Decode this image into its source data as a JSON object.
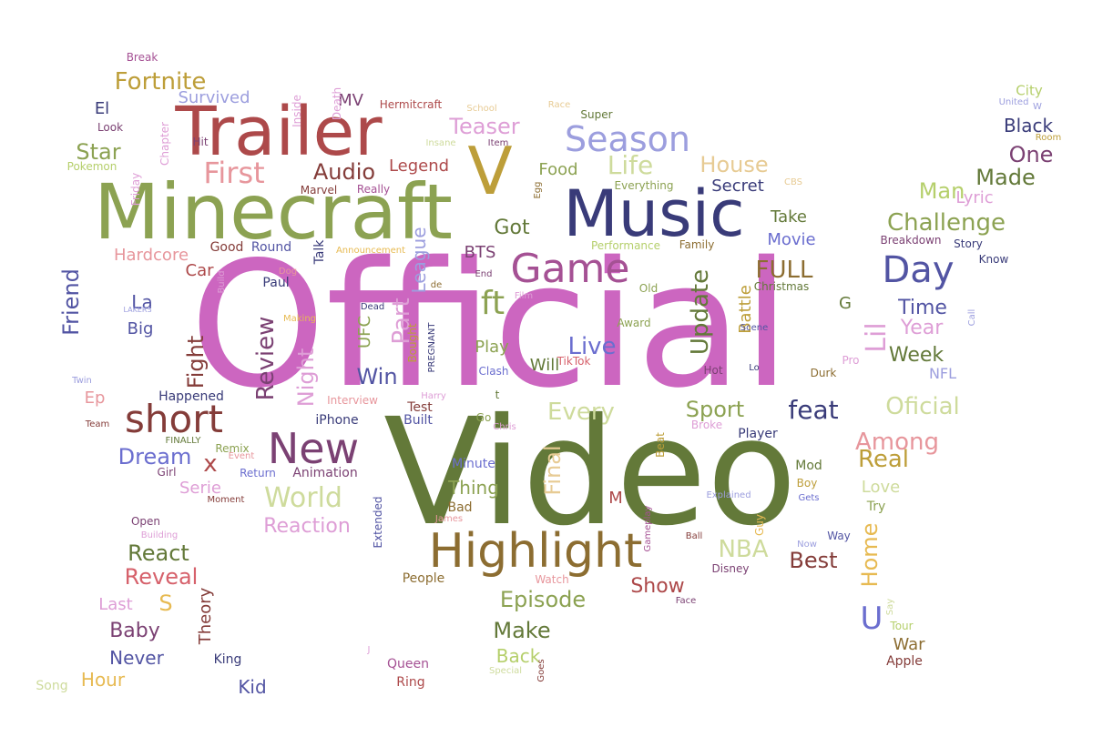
{
  "palette": {
    "pink": "#cc66c0",
    "olive": "#637939",
    "sage": "#8ca252",
    "lime": "#b5cf6b",
    "pale_lime": "#cedb9c",
    "navy": "#393b79",
    "blue": "#5254a3",
    "periwinkle": "#6b6ecf",
    "lavender": "#9c9ede",
    "brown": "#8c6d31",
    "gold": "#bd9e39",
    "yellow": "#e7ba52",
    "tan": "#e7cb94",
    "dark_red": "#843c39",
    "red": "#ad494a",
    "salmon": "#d6616b",
    "light_salmon": "#e7969c",
    "plum": "#7b4173",
    "orchid": "#a55194",
    "light_orchid": "#de9ed6"
  },
  "words": [
    {
      "text": "Official",
      "color": "pink"
    },
    {
      "text": "Video",
      "color": "olive"
    },
    {
      "text": "Minecraft",
      "color": "sage"
    },
    {
      "text": "Music",
      "color": "navy"
    },
    {
      "text": "Trailer",
      "color": "red"
    },
    {
      "text": "V",
      "color": "gold"
    },
    {
      "text": "Highlight",
      "color": "brown"
    },
    {
      "text": "New",
      "color": "plum"
    },
    {
      "text": "short",
      "color": "dark_red"
    },
    {
      "text": "Game",
      "color": "orchid"
    },
    {
      "text": "ft",
      "color": "sage"
    },
    {
      "text": "Season",
      "color": "lavender"
    },
    {
      "text": "Day",
      "color": "blue"
    },
    {
      "text": "First",
      "color": "light_salmon"
    },
    {
      "text": "World",
      "color": "pale_lime"
    },
    {
      "text": "Fortnite",
      "color": "gold"
    },
    {
      "text": "Life",
      "color": "pale_lime"
    },
    {
      "text": "Teaser",
      "color": "light_orchid"
    },
    {
      "text": "Audio",
      "color": "dark_red"
    },
    {
      "text": "House",
      "color": "tan"
    },
    {
      "text": "Challenge",
      "color": "sage"
    },
    {
      "text": "Man",
      "color": "lime"
    },
    {
      "text": "Made",
      "color": "olive"
    },
    {
      "text": "One",
      "color": "plum"
    },
    {
      "text": "Black",
      "color": "navy"
    },
    {
      "text": "City",
      "color": "lime"
    },
    {
      "text": "Lyric",
      "color": "light_orchid"
    },
    {
      "text": "FULL",
      "color": "brown"
    },
    {
      "text": "Time",
      "color": "blue"
    },
    {
      "text": "Year",
      "color": "light_orchid"
    },
    {
      "text": "Week",
      "color": "olive"
    },
    {
      "text": "Lil",
      "color": "light_orchid"
    },
    {
      "text": "NFL",
      "color": "lavender"
    },
    {
      "text": "feat",
      "color": "navy"
    },
    {
      "text": "Oficial",
      "color": "pale_lime"
    },
    {
      "text": "Among",
      "color": "light_salmon"
    },
    {
      "text": "Real",
      "color": "gold"
    },
    {
      "text": "Love",
      "color": "pale_lime"
    },
    {
      "text": "Sport",
      "color": "sage"
    },
    {
      "text": "Every",
      "color": "pale_lime"
    },
    {
      "text": "Live",
      "color": "periwinkle"
    },
    {
      "text": "Update",
      "color": "olive"
    },
    {
      "text": "Win",
      "color": "blue"
    },
    {
      "text": "Night",
      "color": "light_orchid"
    },
    {
      "text": "Review",
      "color": "plum"
    },
    {
      "text": "Fight",
      "color": "dark_red"
    },
    {
      "text": "Dream",
      "color": "periwinkle"
    },
    {
      "text": "Star",
      "color": "sage"
    },
    {
      "text": "El",
      "color": "navy"
    },
    {
      "text": "Survived",
      "color": "lavender"
    },
    {
      "text": "Legend",
      "color": "red"
    },
    {
      "text": "Secret",
      "color": "navy"
    },
    {
      "text": "Food",
      "color": "sage"
    },
    {
      "text": "Got",
      "color": "olive"
    },
    {
      "text": "Take",
      "color": "olive"
    },
    {
      "text": "Movie",
      "color": "periwinkle"
    },
    {
      "text": "Friend",
      "color": "blue"
    },
    {
      "text": "Hardcore",
      "color": "light_salmon"
    },
    {
      "text": "Car",
      "color": "red"
    },
    {
      "text": "La",
      "color": "blue"
    },
    {
      "text": "Big",
      "color": "blue"
    },
    {
      "text": "Ep",
      "color": "light_salmon"
    },
    {
      "text": "x",
      "color": "red"
    },
    {
      "text": "Serie",
      "color": "light_orchid"
    },
    {
      "text": "Reaction",
      "color": "light_orchid"
    },
    {
      "text": "React",
      "color": "olive"
    },
    {
      "text": "Reveal",
      "color": "salmon"
    },
    {
      "text": "S",
      "color": "yellow"
    },
    {
      "text": "Last",
      "color": "light_orchid"
    },
    {
      "text": "Baby",
      "color": "plum"
    },
    {
      "text": "Never",
      "color": "blue"
    },
    {
      "text": "Hour",
      "color": "yellow"
    },
    {
      "text": "Theory",
      "color": "dark_red"
    },
    {
      "text": "Kid",
      "color": "blue"
    },
    {
      "text": "Episode",
      "color": "sage"
    },
    {
      "text": "Make",
      "color": "olive"
    },
    {
      "text": "Back",
      "color": "lime"
    },
    {
      "text": "NBA",
      "color": "pale_lime"
    },
    {
      "text": "Best",
      "color": "dark_red"
    },
    {
      "text": "Show",
      "color": "red"
    },
    {
      "text": "Home",
      "color": "yellow"
    },
    {
      "text": "U",
      "color": "periwinkle"
    },
    {
      "text": "War",
      "color": "brown"
    },
    {
      "text": "Final",
      "color": "tan"
    },
    {
      "text": "Thing",
      "color": "sage"
    },
    {
      "text": "Play",
      "color": "sage"
    },
    {
      "text": "Will",
      "color": "olive"
    },
    {
      "text": "Part",
      "color": "light_orchid"
    },
    {
      "text": "League",
      "color": "lavender"
    },
    {
      "text": "BTS",
      "color": "plum"
    },
    {
      "text": "UFC",
      "color": "sage"
    },
    {
      "text": "Battle",
      "color": "gold"
    },
    {
      "text": "MV",
      "color": "plum"
    },
    {
      "text": "G",
      "color": "olive"
    },
    {
      "text": "M",
      "color": "red"
    },
    {
      "text": "People",
      "color": "brown"
    },
    {
      "text": "Christmas",
      "color": "olive"
    },
    {
      "text": "Old",
      "color": "sage"
    },
    {
      "text": "Award",
      "color": "sage"
    },
    {
      "text": "Paul",
      "color": "navy"
    },
    {
      "text": "Talk",
      "color": "navy"
    },
    {
      "text": "Round",
      "color": "blue"
    },
    {
      "text": "Good",
      "color": "dark_red"
    },
    {
      "text": "Happened",
      "color": "navy"
    },
    {
      "text": "Extended",
      "color": "blue"
    },
    {
      "text": "iPhone",
      "color": "navy"
    },
    {
      "text": "Built",
      "color": "blue"
    },
    {
      "text": "Test",
      "color": "dark_red"
    },
    {
      "text": "Minute",
      "color": "periwinkle"
    },
    {
      "text": "Animation",
      "color": "plum"
    },
    {
      "text": "Remix",
      "color": "sage"
    },
    {
      "text": "Return",
      "color": "periwinkle"
    },
    {
      "text": "Bad",
      "color": "brown"
    },
    {
      "text": "Mod",
      "color": "olive"
    },
    {
      "text": "Boy",
      "color": "gold"
    },
    {
      "text": "Try",
      "color": "sage"
    },
    {
      "text": "Way",
      "color": "blue"
    },
    {
      "text": "Player",
      "color": "navy"
    },
    {
      "text": "Breakdown",
      "color": "plum"
    },
    {
      "text": "Story",
      "color": "navy"
    },
    {
      "text": "Know",
      "color": "navy"
    },
    {
      "text": "Family",
      "color": "brown"
    },
    {
      "text": "Performance",
      "color": "lime"
    },
    {
      "text": "Everything",
      "color": "sage"
    },
    {
      "text": "Really",
      "color": "orchid"
    },
    {
      "text": "Marvel",
      "color": "dark_red"
    },
    {
      "text": "Friday",
      "color": "light_orchid"
    },
    {
      "text": "Pokemon",
      "color": "lime"
    },
    {
      "text": "Chapter",
      "color": "light_orchid"
    },
    {
      "text": "Hit",
      "color": "plum"
    },
    {
      "text": "Look",
      "color": "plum"
    },
    {
      "text": "Break",
      "color": "orchid"
    },
    {
      "text": "Inside",
      "color": "light_orchid"
    },
    {
      "text": "Death",
      "color": "light_orchid"
    },
    {
      "text": "Hermitcraft",
      "color": "red"
    },
    {
      "text": "School",
      "color": "tan"
    },
    {
      "text": "Race",
      "color": "tan"
    },
    {
      "text": "Super",
      "color": "olive"
    },
    {
      "text": "Insane",
      "color": "pale_lime"
    },
    {
      "text": "Item",
      "color": "plum"
    },
    {
      "text": "Egg",
      "color": "brown"
    },
    {
      "text": "CBS",
      "color": "tan"
    },
    {
      "text": "United",
      "color": "lavender"
    },
    {
      "text": "W",
      "color": "lavender"
    },
    {
      "text": "Room",
      "color": "gold"
    },
    {
      "text": "Build",
      "color": "light_orchid"
    },
    {
      "text": "Dog",
      "color": "light_salmon"
    },
    {
      "text": "Announcement",
      "color": "yellow"
    },
    {
      "text": "End",
      "color": "plum"
    },
    {
      "text": "de",
      "color": "brown"
    },
    {
      "text": "Dead",
      "color": "navy"
    },
    {
      "text": "Film",
      "color": "light_orchid"
    },
    {
      "text": "Call",
      "color": "lavender"
    },
    {
      "text": "Scene",
      "color": "blue"
    },
    {
      "text": "LAKERS",
      "color": "lavender"
    },
    {
      "text": "Making",
      "color": "yellow"
    },
    {
      "text": "Bought",
      "color": "gold"
    },
    {
      "text": "PREGNANT",
      "color": "navy"
    },
    {
      "text": "Clash",
      "color": "periwinkle"
    },
    {
      "text": "TikTok",
      "color": "salmon"
    },
    {
      "text": "Hot",
      "color": "plum"
    },
    {
      "text": "Lo",
      "color": "navy"
    },
    {
      "text": "Durk",
      "color": "brown"
    },
    {
      "text": "Pro",
      "color": "light_orchid"
    },
    {
      "text": "Twin",
      "color": "lavender"
    },
    {
      "text": "Interview",
      "color": "light_salmon"
    },
    {
      "text": "Harry",
      "color": "light_orchid"
    },
    {
      "text": "t",
      "color": "olive"
    },
    {
      "text": "Go",
      "color": "sage"
    },
    {
      "text": "Chris",
      "color": "light_orchid"
    },
    {
      "text": "Beat",
      "color": "gold"
    },
    {
      "text": "Broke",
      "color": "light_orchid"
    },
    {
      "text": "Team",
      "color": "dark_red"
    },
    {
      "text": "FINALLY",
      "color": "olive"
    },
    {
      "text": "Event",
      "color": "light_salmon"
    },
    {
      "text": "Girl",
      "color": "plum"
    },
    {
      "text": "Moment",
      "color": "dark_red"
    },
    {
      "text": "James",
      "color": "light_salmon"
    },
    {
      "text": "Gameplay",
      "color": "orchid"
    },
    {
      "text": "Explained",
      "color": "lavender"
    },
    {
      "text": "Gets",
      "color": "periwinkle"
    },
    {
      "text": "Guy",
      "color": "yellow"
    },
    {
      "text": "Ball",
      "color": "dark_red"
    },
    {
      "text": "Now",
      "color": "lavender"
    },
    {
      "text": "Disney",
      "color": "plum"
    },
    {
      "text": "Open",
      "color": "plum"
    },
    {
      "text": "Building",
      "color": "light_orchid"
    },
    {
      "text": "Watch",
      "color": "light_salmon"
    },
    {
      "text": "Face",
      "color": "plum"
    },
    {
      "text": "Say",
      "color": "pale_lime"
    },
    {
      "text": "Tour",
      "color": "lime"
    },
    {
      "text": "Apple",
      "color": "dark_red"
    },
    {
      "text": "King",
      "color": "navy"
    },
    {
      "text": "J",
      "color": "light_orchid"
    },
    {
      "text": "Queen",
      "color": "orchid"
    },
    {
      "text": "Ring",
      "color": "red"
    },
    {
      "text": "Special",
      "color": "pale_lime"
    },
    {
      "text": "Goes",
      "color": "dark_red"
    },
    {
      "text": "Song",
      "color": "pale_lime"
    }
  ]
}
